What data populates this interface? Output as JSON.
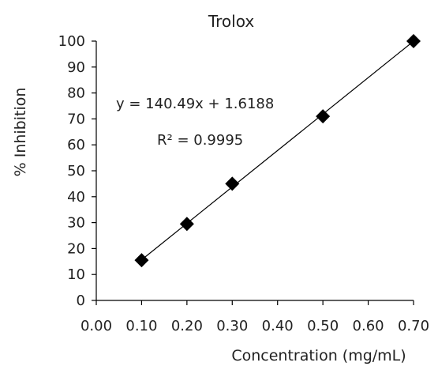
{
  "chart_data": {
    "type": "scatter",
    "title": "Trolox",
    "xlabel": "Concentration (mg/mL)",
    "ylabel": "% Inhibition",
    "xlim": [
      0,
      0.7
    ],
    "ylim": [
      0,
      100
    ],
    "x_ticks": [
      "0.00",
      "0.10",
      "0.20",
      "0.30",
      "0.40",
      "0.50",
      "0.60",
      "0.70"
    ],
    "y_ticks": [
      "0",
      "10",
      "20",
      "30",
      "40",
      "50",
      "60",
      "70",
      "80",
      "90",
      "100"
    ],
    "grid": false,
    "marker": "diamond",
    "color": "#000000",
    "series": [
      {
        "x": [
          0.1,
          0.2,
          0.3,
          0.5,
          0.7
        ],
        "y": [
          15.5,
          29.5,
          45,
          71,
          100
        ]
      }
    ],
    "trendline": {
      "slope": 140.49,
      "intercept": 1.6188,
      "equation_label": "y = 140.49x + 1.6188",
      "r2_label": "R² = 0.9995"
    }
  }
}
